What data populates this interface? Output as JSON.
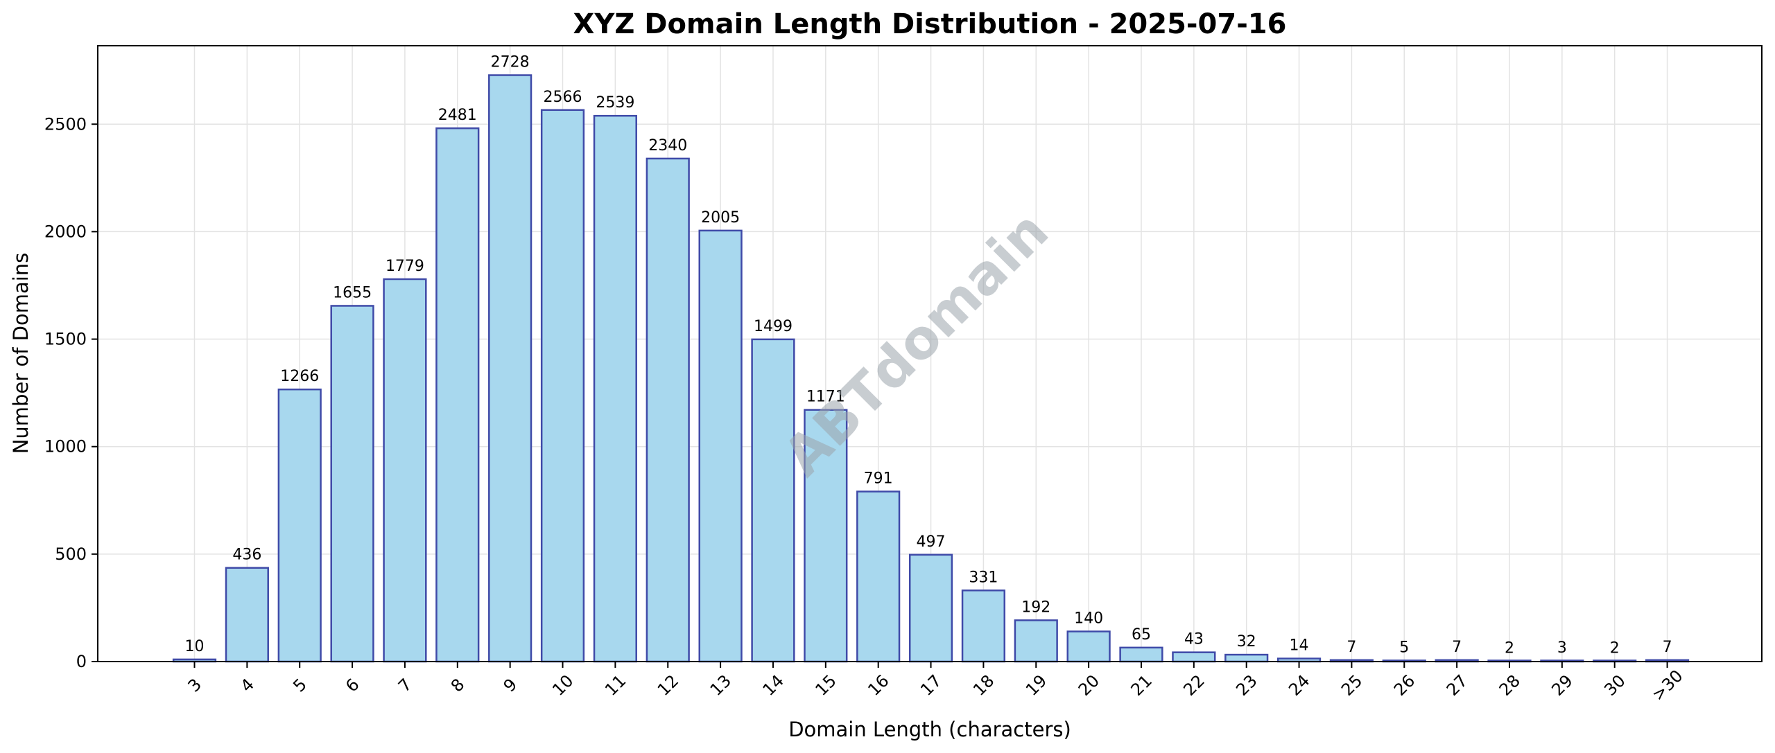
{
  "chart_data": {
    "type": "bar",
    "title": "XYZ Domain Length Distribution - 2025-07-16",
    "xlabel": "Domain Length (characters)",
    "ylabel": "Number of Domains",
    "categories": [
      "3",
      "4",
      "5",
      "6",
      "7",
      "8",
      "9",
      "10",
      "11",
      "12",
      "13",
      "14",
      "15",
      "16",
      "17",
      "18",
      "19",
      "20",
      "21",
      "22",
      "23",
      "24",
      "25",
      "26",
      "27",
      "28",
      "29",
      "30",
      ">30"
    ],
    "values": [
      10,
      436,
      1266,
      1655,
      1779,
      2481,
      2728,
      2566,
      2539,
      2340,
      2005,
      1499,
      1171,
      791,
      497,
      331,
      192,
      140,
      65,
      43,
      32,
      14,
      7,
      5,
      7,
      2,
      3,
      2,
      7
    ],
    "ylim": [
      0,
      2865
    ],
    "yticks": [
      0,
      500,
      1000,
      1500,
      2000,
      2500
    ],
    "grid": true,
    "watermark": "ABTdomain",
    "colors": {
      "bar_fill": "#a8d8ee",
      "bar_edge": "#3f4aa8",
      "grid": "#e3e3e3"
    }
  }
}
